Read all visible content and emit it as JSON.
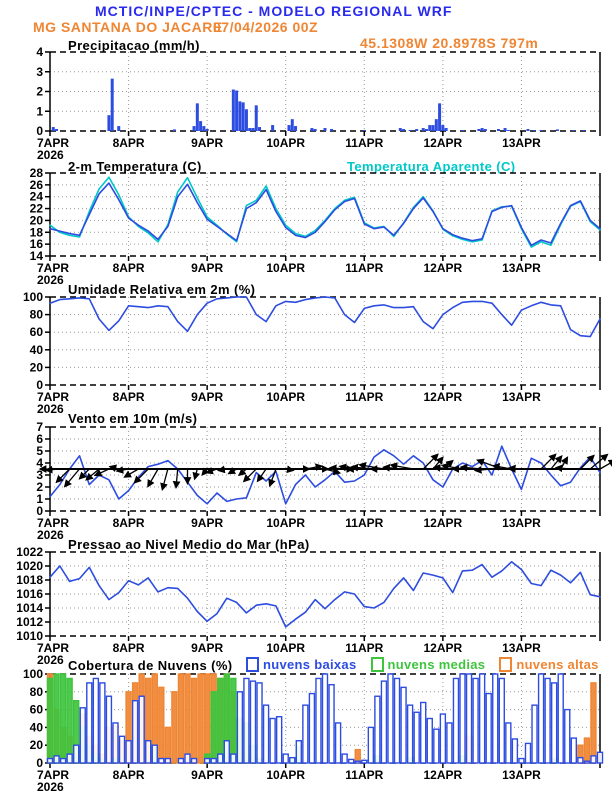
{
  "header": {
    "line1": "MCTIC/INPE/CPTEC - MODELO REGIONAL WRF",
    "location": "MG SANTANA DO JACARE",
    "run": "07/04/2026 00Z",
    "coords": "45.1308W 20.8978S 797m",
    "accent_blue": "#2a2aee",
    "accent_orange": "#ef8633"
  },
  "xaxis": {
    "labels": [
      "7APR",
      "8APR",
      "9APR",
      "10APR",
      "11APR",
      "12APR",
      "13APR"
    ],
    "year": "2026",
    "tick_hours": [
      0,
      24,
      48,
      72,
      96,
      120,
      144
    ],
    "span_hours": 168
  },
  "chart_data": [
    {
      "id": "precip",
      "type": "bar",
      "title": "Precipitacao (mm/h)",
      "ylim": [
        0,
        4
      ],
      "yticks": [
        0,
        1,
        2,
        3,
        4
      ],
      "color": "#2d4ce0",
      "bars": [
        [
          1,
          0.2
        ],
        [
          2,
          0.1
        ],
        [
          18,
          0.8
        ],
        [
          19,
          2.65
        ],
        [
          21,
          0.25
        ],
        [
          38,
          0.08
        ],
        [
          44,
          0.25
        ],
        [
          45,
          1.4
        ],
        [
          46,
          0.5
        ],
        [
          47,
          0.25
        ],
        [
          48,
          0.1
        ],
        [
          56,
          2.1
        ],
        [
          57,
          2.05
        ],
        [
          58,
          1.5
        ],
        [
          59,
          1.45
        ],
        [
          60,
          1.1
        ],
        [
          61,
          0.15
        ],
        [
          62,
          0.15
        ],
        [
          63,
          1.3
        ],
        [
          64,
          0.2
        ],
        [
          68,
          0.3
        ],
        [
          73,
          0.3
        ],
        [
          74,
          0.6
        ],
        [
          75,
          0.25
        ],
        [
          80,
          0.15
        ],
        [
          81,
          0.1
        ],
        [
          84,
          0.15
        ],
        [
          86,
          0.1
        ],
        [
          96,
          0.05
        ],
        [
          107,
          0.15
        ],
        [
          108,
          0.1
        ],
        [
          110,
          0.05
        ],
        [
          112,
          0.1
        ],
        [
          114,
          0.15
        ],
        [
          115,
          0.1
        ],
        [
          116,
          0.3
        ],
        [
          117,
          0.3
        ],
        [
          118,
          0.6
        ],
        [
          119,
          1.4
        ],
        [
          120,
          0.3
        ],
        [
          121,
          0.15
        ],
        [
          126,
          0.05
        ],
        [
          131,
          0.1
        ],
        [
          132,
          0.15
        ],
        [
          133,
          0.1
        ],
        [
          137,
          0.1
        ],
        [
          139,
          0.15
        ],
        [
          140,
          0.05
        ],
        [
          146,
          0.1
        ],
        [
          148,
          0.05
        ],
        [
          150,
          0.05
        ],
        [
          155,
          0.08
        ],
        [
          160,
          0.05
        ],
        [
          163,
          0.05
        ]
      ]
    },
    {
      "id": "temp",
      "type": "line",
      "title": "2-m Temperatura (C)",
      "title2": "Temperatura Aparente (C)",
      "ylim": [
        14,
        28
      ],
      "yticks": [
        14,
        16,
        18,
        20,
        22,
        24,
        26,
        28
      ],
      "step_hours": 3,
      "series": [
        {
          "name": "Temperatura Aparente (C)",
          "color": "#00c8c8",
          "values": [
            19.2,
            18.0,
            17.5,
            17.2,
            21.5,
            25.3,
            27.3,
            24.3,
            20.6,
            19.0,
            17.9,
            16.4,
            19.3,
            24.8,
            27.2,
            23.8,
            20.6,
            19.2,
            17.7,
            16.4,
            22.5,
            23.4,
            25.8,
            22.0,
            19.2,
            17.8,
            17.3,
            18.3,
            20.0,
            22.0,
            23.4,
            23.9,
            19.6,
            18.7,
            19.0,
            17.3,
            19.6,
            22.2,
            24.0,
            21.6,
            18.5,
            17.4,
            16.8,
            16.4,
            16.7,
            21.6,
            22.3,
            22.4,
            18.6,
            15.5,
            16.4,
            15.8,
            19.3,
            22.4,
            23.2,
            19.8,
            18.4
          ]
        },
        {
          "name": "2-m Temperatura (C)",
          "color": "#2d4ce0",
          "values": [
            18.6,
            18.2,
            17.8,
            17.5,
            21.0,
            24.5,
            26.3,
            23.5,
            20.4,
            19.2,
            18.2,
            16.8,
            19.0,
            24.0,
            26.1,
            23.0,
            20.2,
            19.0,
            17.8,
            16.6,
            22.0,
            23.0,
            25.2,
            21.5,
            18.8,
            17.5,
            17.1,
            18.0,
            19.8,
            21.8,
            23.2,
            23.7,
            19.4,
            18.6,
            18.9,
            17.5,
            19.5,
            22.0,
            23.8,
            21.5,
            18.6,
            17.6,
            17.0,
            16.6,
            16.9,
            21.5,
            22.2,
            22.5,
            18.8,
            15.8,
            16.7,
            16.2,
            19.5,
            22.5,
            23.3,
            20.0,
            18.6
          ]
        }
      ]
    },
    {
      "id": "rh",
      "type": "line",
      "title": "Umidade Relativa em 2m (%)",
      "ylim": [
        0,
        100
      ],
      "yticks": [
        0,
        20,
        40,
        60,
        80,
        100
      ],
      "step_hours": 3,
      "series": [
        {
          "name": "Umidade Relativa",
          "color": "#2d4ce0",
          "values": [
            93,
            97,
            98,
            99,
            98,
            75,
            62,
            73,
            90,
            89,
            88,
            90,
            89,
            72,
            61,
            80,
            93,
            98,
            99,
            100,
            100,
            80,
            72,
            90,
            95,
            94,
            97,
            99,
            100,
            99,
            80,
            71,
            87,
            90,
            91,
            88,
            88,
            89,
            72,
            64,
            80,
            88,
            94,
            95,
            95,
            93,
            80,
            68,
            85,
            90,
            94,
            91,
            90,
            63,
            56,
            55,
            75
          ]
        }
      ]
    },
    {
      "id": "wind",
      "type": "line-arrows",
      "title": "Vento em 10m (m/s)",
      "ylim": [
        0,
        7
      ],
      "yticks": [
        0,
        1,
        2,
        3,
        4,
        5,
        6,
        7
      ],
      "step_hours": 3,
      "arrow_axis_value": 3.5,
      "arrow_color": "#000000",
      "series": [
        {
          "name": "Vento em 10m",
          "color": "#2d4ce0",
          "values": [
            1.2,
            2.2,
            3.5,
            4.6,
            2.2,
            3.0,
            2.6,
            1.0,
            1.7,
            2.8,
            3.7,
            3.9,
            4.2,
            3.5,
            2.4,
            1.3,
            0.6,
            1.5,
            0.8,
            1.0,
            1.1,
            3.2,
            2.5,
            3.3,
            0.6,
            2.2,
            3.0,
            2.0,
            2.6,
            3.3,
            2.4,
            2.5,
            3.0,
            4.5,
            5.1,
            4.6,
            3.9,
            4.6,
            4.0,
            2.6,
            2.0,
            3.5,
            4.0,
            3.7,
            4.2,
            3.0,
            5.4,
            3.5,
            1.8,
            4.4,
            4.0,
            3.0,
            2.1,
            2.4,
            3.6,
            4.5,
            3.2
          ]
        }
      ],
      "arrow_angles_deg": [
        180,
        175,
        135,
        130,
        135,
        140,
        155,
        195,
        170,
        150,
        135,
        120,
        105,
        95,
        90,
        105,
        130,
        160,
        170,
        150,
        140,
        135,
        125,
        110,
        10,
        0,
        350,
        0,
        15,
        0,
        185,
        190,
        180,
        185,
        190,
        180,
        185,
        190,
        315,
        310,
        320,
        185,
        190,
        180,
        185,
        175,
        200,
        190,
        185,
        180,
        315,
        310,
        300,
        185,
        315,
        320,
        330
      ]
    },
    {
      "id": "pressure",
      "type": "line",
      "title": "Pressao ao Nivel Medio do Mar (hPa)",
      "ylim": [
        1010,
        1022
      ],
      "yticks": [
        1010,
        1012,
        1014,
        1016,
        1018,
        1020,
        1022
      ],
      "step_hours": 3,
      "series": [
        {
          "name": "Pressao ao Nivel Medio do Mar",
          "color": "#2d4ce0",
          "values": [
            1018.4,
            1020.0,
            1017.8,
            1018.2,
            1019.8,
            1017.2,
            1015.2,
            1016.2,
            1017.9,
            1017.3,
            1018.3,
            1016.3,
            1016.9,
            1016.8,
            1015.4,
            1013.5,
            1012.1,
            1013.2,
            1015.4,
            1014.8,
            1013.3,
            1014.4,
            1014.6,
            1014.3,
            1011.3,
            1012.4,
            1013.4,
            1015.2,
            1013.9,
            1015.2,
            1016.3,
            1016.0,
            1014.2,
            1014.0,
            1014.8,
            1016.8,
            1018.3,
            1016.5,
            1019.0,
            1018.7,
            1018.3,
            1016.2,
            1019.3,
            1019.4,
            1020.2,
            1018.4,
            1019.3,
            1020.6,
            1019.5,
            1017.5,
            1017.2,
            1019.4,
            1018.7,
            1017.6,
            1019.1,
            1015.9,
            1015.6
          ]
        }
      ]
    },
    {
      "id": "clouds",
      "type": "bar3",
      "title": "Cobertura de Nuvens (%)",
      "ylim": [
        0,
        100
      ],
      "yticks": [
        0,
        20,
        40,
        60,
        80,
        100
      ],
      "step_hours": 2,
      "series": [
        {
          "name": "nuvens altas",
          "color": "#ef8633",
          "fill": "solid",
          "values": [
            100,
            60,
            40,
            30,
            20,
            55,
            30,
            20,
            10,
            40,
            42,
            25,
            80,
            90,
            100,
            95,
            100,
            85,
            40,
            80,
            100,
            100,
            95,
            100,
            100,
            100,
            95,
            100,
            80,
            30,
            10,
            5,
            0,
            0,
            0,
            0,
            0,
            0,
            0,
            0,
            0,
            0,
            0,
            0,
            0,
            0,
            0,
            15,
            0,
            0,
            0,
            0,
            0,
            0,
            0,
            0,
            0,
            0,
            0,
            0,
            0,
            0,
            0,
            0,
            30,
            0,
            0,
            0,
            0,
            0,
            0,
            0,
            0,
            0,
            0,
            0,
            0,
            0,
            0,
            0,
            0,
            20,
            28,
            90,
            0
          ]
        },
        {
          "name": "nuvens medias",
          "color": "#3fc43f",
          "fill": "solid",
          "values": [
            95,
            100,
            100,
            95,
            70,
            40,
            20,
            10,
            5,
            0,
            5,
            0,
            0,
            0,
            0,
            0,
            20,
            0,
            0,
            0,
            0,
            0,
            0,
            0,
            10,
            80,
            95,
            100,
            95,
            50,
            45,
            20,
            5,
            0,
            0,
            0,
            0,
            5,
            18,
            0,
            0,
            0,
            0,
            0,
            0,
            0,
            0,
            0,
            0,
            0,
            8,
            0,
            0,
            0,
            0,
            6,
            0,
            0,
            0,
            0,
            0,
            0,
            0,
            8,
            0,
            0,
            0,
            0,
            0,
            0,
            0,
            0,
            0,
            0,
            0,
            0,
            0,
            5,
            0,
            0,
            0,
            0,
            0,
            0,
            0
          ]
        },
        {
          "name": "nuvens baixas",
          "color": "#2d4ce0",
          "fill": "hollow",
          "values": [
            5,
            8,
            5,
            10,
            20,
            62,
            90,
            95,
            90,
            75,
            45,
            30,
            25,
            70,
            75,
            25,
            20,
            5,
            5,
            0,
            5,
            10,
            5,
            0,
            5,
            5,
            10,
            25,
            10,
            80,
            95,
            92,
            90,
            65,
            50,
            52,
            10,
            6,
            25,
            65,
            78,
            95,
            100,
            88,
            45,
            10,
            4,
            2,
            3,
            40,
            75,
            92,
            100,
            95,
            85,
            65,
            57,
            68,
            50,
            38,
            55,
            45,
            95,
            100,
            100,
            95,
            100,
            78,
            100,
            95,
            45,
            27,
            5,
            22,
            65,
            100,
            95,
            90,
            100,
            60,
            28,
            6,
            2,
            8,
            12
          ]
        }
      ]
    }
  ]
}
